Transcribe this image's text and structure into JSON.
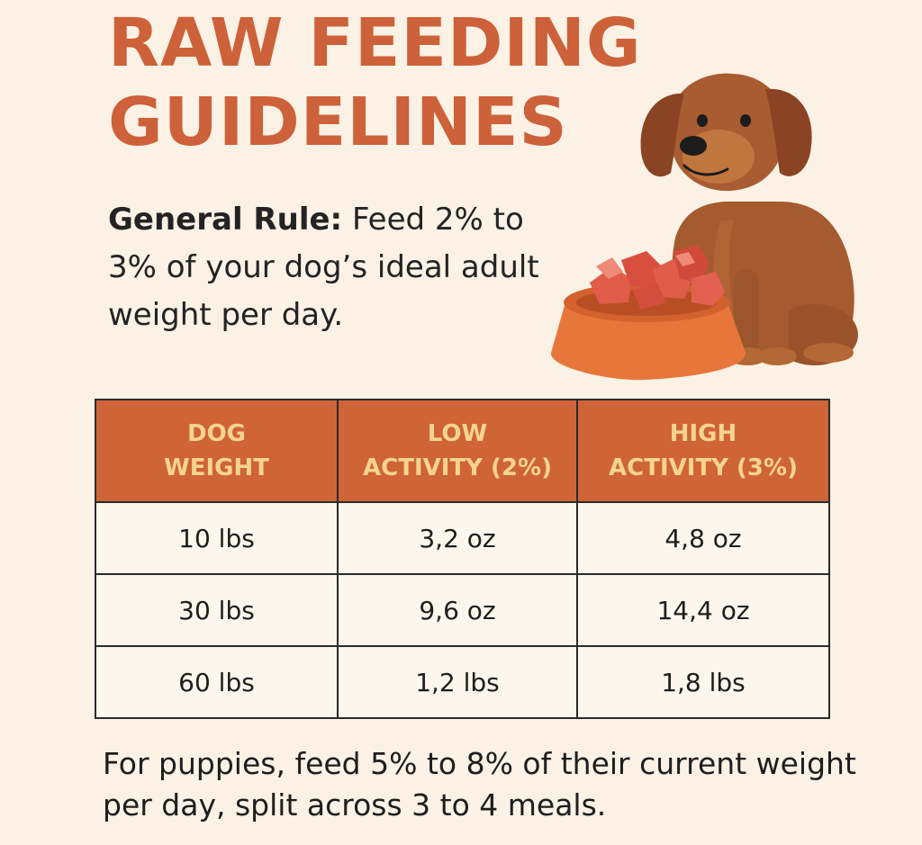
{
  "title": {
    "line1": "RAW FEEDING",
    "line2": "GUIDELINES"
  },
  "rule": {
    "lead": "General Rule:",
    "text": " Feed 2% to 3% of your dog’s ideal adult weight per day."
  },
  "illustration": {
    "subject": "dog-with-raw-food-bowl",
    "colors": {
      "dog": "#a65a30",
      "ears": "#8a4424",
      "bowl": "#e7763a",
      "meat": "#e25c4a"
    }
  },
  "table": {
    "headers": [
      {
        "line1": "DOG",
        "line2": "WEIGHT"
      },
      {
        "line1": "LOW",
        "line2": "ACTIVITY (2%)"
      },
      {
        "line1": "HIGH",
        "line2": "ACTIVITY (3%)"
      }
    ],
    "rows": [
      [
        "10 lbs",
        "3,2 oz",
        "4,8 oz"
      ],
      [
        "30 lbs",
        "9,6 oz",
        "14,4 oz"
      ],
      [
        "60 lbs",
        "1,2 lbs",
        "1,8 lbs"
      ]
    ]
  },
  "footer": "For puppies, feed 5% to 8% of their current weight per day, split across 3 to 4 meals.",
  "colors": {
    "background": "#fbf1e4",
    "title": "#cd6139",
    "header_bg": "#cf6438",
    "header_text": "#f6d490"
  }
}
